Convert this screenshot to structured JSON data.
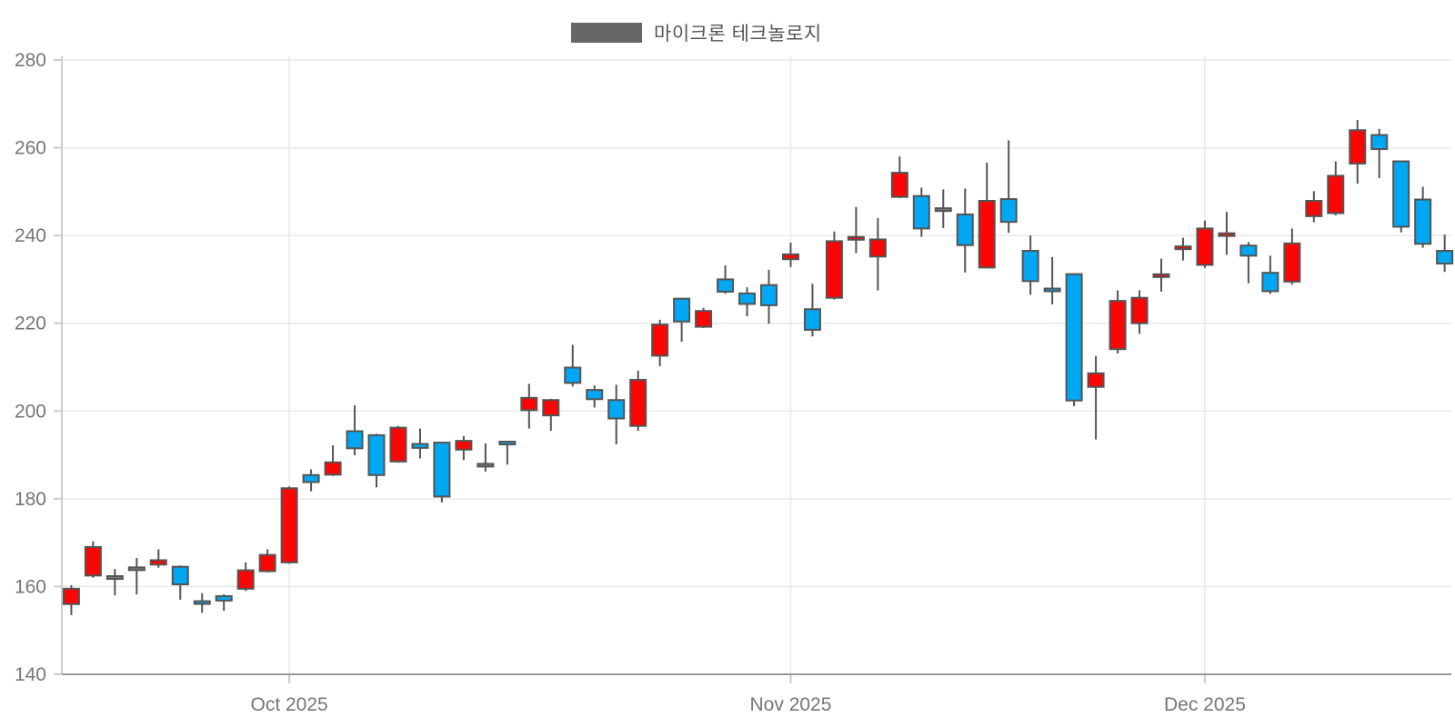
{
  "legend": {
    "label": "마이크론 테크놀로지",
    "swatch_color": "#666666"
  },
  "chart_data": {
    "type": "candlestick",
    "title": "마이크론 테크놀로지",
    "ylabel": "",
    "xlabel": "",
    "ylim": [
      140,
      280
    ],
    "grid": true,
    "legend_position": "top-center",
    "y_ticks": [
      280,
      260,
      240,
      220,
      200,
      180,
      160,
      140
    ],
    "x_ticks": [
      {
        "label": "Oct 2025",
        "candle_index": 10
      },
      {
        "label": "Nov 2025",
        "candle_index": 33
      },
      {
        "label": "Dec 2025",
        "candle_index": 52
      }
    ],
    "colors": {
      "up": "#fb0505",
      "down": "#00a7f2",
      "neutral": "#7f7f7f",
      "outline": "#545454",
      "gridline": "#e9e9e9",
      "axis_line": "#999999",
      "tick_line": "#cccccc",
      "label_text": "#757575"
    },
    "candles": [
      {
        "o": 156.0,
        "h": 160.3,
        "l": 153.5,
        "c": 159.5,
        "color": "up"
      },
      {
        "o": 162.5,
        "h": 170.3,
        "l": 162.0,
        "c": 169.0,
        "color": "up"
      },
      {
        "o": 162.3,
        "h": 164.0,
        "l": 158.0,
        "c": 161.8,
        "color": "neutral"
      },
      {
        "o": 163.9,
        "h": 166.5,
        "l": 158.2,
        "c": 164.2,
        "color": "neutral"
      },
      {
        "o": 165.0,
        "h": 168.5,
        "l": 164.3,
        "c": 166.0,
        "color": "up"
      },
      {
        "o": 164.5,
        "h": 164.8,
        "l": 157.0,
        "c": 160.5,
        "color": "down"
      },
      {
        "o": 156.5,
        "h": 158.5,
        "l": 154.0,
        "c": 156.2,
        "color": "down"
      },
      {
        "o": 157.8,
        "h": 158.2,
        "l": 154.5,
        "c": 156.8,
        "color": "down"
      },
      {
        "o": 159.5,
        "h": 165.5,
        "l": 159.0,
        "c": 163.7,
        "color": "up"
      },
      {
        "o": 163.5,
        "h": 168.5,
        "l": 163.2,
        "c": 167.2,
        "color": "up"
      },
      {
        "o": 165.5,
        "h": 182.8,
        "l": 165.2,
        "c": 182.4,
        "color": "up"
      },
      {
        "o": 185.4,
        "h": 186.7,
        "l": 181.7,
        "c": 183.8,
        "color": "down"
      },
      {
        "o": 185.5,
        "h": 192.2,
        "l": 185.2,
        "c": 188.3,
        "color": "up"
      },
      {
        "o": 195.4,
        "h": 201.3,
        "l": 189.9,
        "c": 191.5,
        "color": "down"
      },
      {
        "o": 194.5,
        "h": 194.8,
        "l": 182.6,
        "c": 185.4,
        "color": "down"
      },
      {
        "o": 188.5,
        "h": 196.6,
        "l": 188.2,
        "c": 196.2,
        "color": "up"
      },
      {
        "o": 192.5,
        "h": 196.0,
        "l": 189.2,
        "c": 191.6,
        "color": "down"
      },
      {
        "o": 192.8,
        "h": 193.0,
        "l": 179.2,
        "c": 180.5,
        "color": "down"
      },
      {
        "o": 191.2,
        "h": 194.3,
        "l": 188.8,
        "c": 193.2,
        "color": "up"
      },
      {
        "o": 187.6,
        "h": 192.6,
        "l": 186.2,
        "c": 187.7,
        "color": "neutral"
      },
      {
        "o": 192.8,
        "h": 193.2,
        "l": 187.8,
        "c": 192.6,
        "color": "down"
      },
      {
        "o": 200.2,
        "h": 206.2,
        "l": 196.0,
        "c": 203.0,
        "color": "up"
      },
      {
        "o": 199.0,
        "h": 202.8,
        "l": 195.5,
        "c": 202.5,
        "color": "up"
      },
      {
        "o": 209.9,
        "h": 215.1,
        "l": 205.6,
        "c": 206.4,
        "color": "down"
      },
      {
        "o": 204.8,
        "h": 205.8,
        "l": 200.8,
        "c": 202.7,
        "color": "down"
      },
      {
        "o": 202.5,
        "h": 206.0,
        "l": 192.4,
        "c": 198.3,
        "color": "down"
      },
      {
        "o": 196.6,
        "h": 209.2,
        "l": 195.5,
        "c": 207.1,
        "color": "up"
      },
      {
        "o": 212.6,
        "h": 220.8,
        "l": 210.2,
        "c": 219.7,
        "color": "up"
      },
      {
        "o": 225.6,
        "h": 225.8,
        "l": 215.8,
        "c": 220.4,
        "color": "down"
      },
      {
        "o": 219.2,
        "h": 223.5,
        "l": 218.9,
        "c": 222.8,
        "color": "up"
      },
      {
        "o": 230.0,
        "h": 233.2,
        "l": 226.7,
        "c": 227.2,
        "color": "down"
      },
      {
        "o": 226.8,
        "h": 228.2,
        "l": 221.6,
        "c": 224.4,
        "color": "down"
      },
      {
        "o": 228.7,
        "h": 232.2,
        "l": 219.9,
        "c": 224.1,
        "color": "down"
      },
      {
        "o": 234.6,
        "h": 238.4,
        "l": 232.8,
        "c": 235.7,
        "color": "up"
      },
      {
        "o": 223.2,
        "h": 229.0,
        "l": 217.0,
        "c": 218.5,
        "color": "down"
      },
      {
        "o": 225.8,
        "h": 240.9,
        "l": 225.4,
        "c": 238.7,
        "color": "up"
      },
      {
        "o": 239.2,
        "h": 246.5,
        "l": 236.0,
        "c": 239.5,
        "color": "up"
      },
      {
        "o": 235.2,
        "h": 244.0,
        "l": 227.5,
        "c": 239.1,
        "color": "up"
      },
      {
        "o": 248.8,
        "h": 258.0,
        "l": 248.5,
        "c": 254.3,
        "color": "up"
      },
      {
        "o": 249.0,
        "h": 250.9,
        "l": 239.7,
        "c": 241.6,
        "color": "down"
      },
      {
        "o": 246.0,
        "h": 250.5,
        "l": 241.7,
        "c": 245.8,
        "color": "neutral"
      },
      {
        "o": 244.8,
        "h": 250.7,
        "l": 231.6,
        "c": 237.8,
        "color": "down"
      },
      {
        "o": 232.7,
        "h": 256.6,
        "l": 232.5,
        "c": 247.9,
        "color": "up"
      },
      {
        "o": 248.3,
        "h": 261.7,
        "l": 240.6,
        "c": 243.1,
        "color": "down"
      },
      {
        "o": 236.5,
        "h": 240.0,
        "l": 226.5,
        "c": 229.6,
        "color": "down"
      },
      {
        "o": 227.8,
        "h": 235.1,
        "l": 224.3,
        "c": 227.4,
        "color": "down"
      },
      {
        "o": 231.2,
        "h": 231.4,
        "l": 201.1,
        "c": 202.4,
        "color": "down"
      },
      {
        "o": 205.5,
        "h": 212.5,
        "l": 193.5,
        "c": 208.6,
        "color": "up"
      },
      {
        "o": 214.1,
        "h": 227.5,
        "l": 213.1,
        "c": 225.1,
        "color": "up"
      },
      {
        "o": 220.0,
        "h": 227.5,
        "l": 217.6,
        "c": 225.8,
        "color": "up"
      },
      {
        "o": 230.7,
        "h": 234.7,
        "l": 227.2,
        "c": 231.0,
        "color": "up"
      },
      {
        "o": 237.1,
        "h": 239.5,
        "l": 234.3,
        "c": 237.3,
        "color": "up"
      },
      {
        "o": 233.3,
        "h": 243.4,
        "l": 232.6,
        "c": 241.6,
        "color": "up"
      },
      {
        "o": 240.1,
        "h": 245.4,
        "l": 235.6,
        "c": 240.3,
        "color": "up"
      },
      {
        "o": 237.7,
        "h": 238.5,
        "l": 229.1,
        "c": 235.4,
        "color": "down"
      },
      {
        "o": 231.5,
        "h": 235.4,
        "l": 226.7,
        "c": 227.3,
        "color": "down"
      },
      {
        "o": 229.5,
        "h": 241.6,
        "l": 228.8,
        "c": 238.2,
        "color": "up"
      },
      {
        "o": 244.4,
        "h": 250.1,
        "l": 243.0,
        "c": 247.9,
        "color": "up"
      },
      {
        "o": 245.1,
        "h": 256.9,
        "l": 244.6,
        "c": 253.6,
        "color": "up"
      },
      {
        "o": 256.4,
        "h": 266.3,
        "l": 251.8,
        "c": 264.0,
        "color": "up"
      },
      {
        "o": 262.9,
        "h": 264.3,
        "l": 253.1,
        "c": 259.7,
        "color": "down"
      },
      {
        "o": 256.9,
        "h": 257.1,
        "l": 240.7,
        "c": 242.0,
        "color": "down"
      },
      {
        "o": 248.2,
        "h": 251.1,
        "l": 237.2,
        "c": 238.1,
        "color": "down"
      },
      {
        "o": 236.5,
        "h": 240.2,
        "l": 231.7,
        "c": 233.6,
        "color": "down"
      }
    ]
  }
}
